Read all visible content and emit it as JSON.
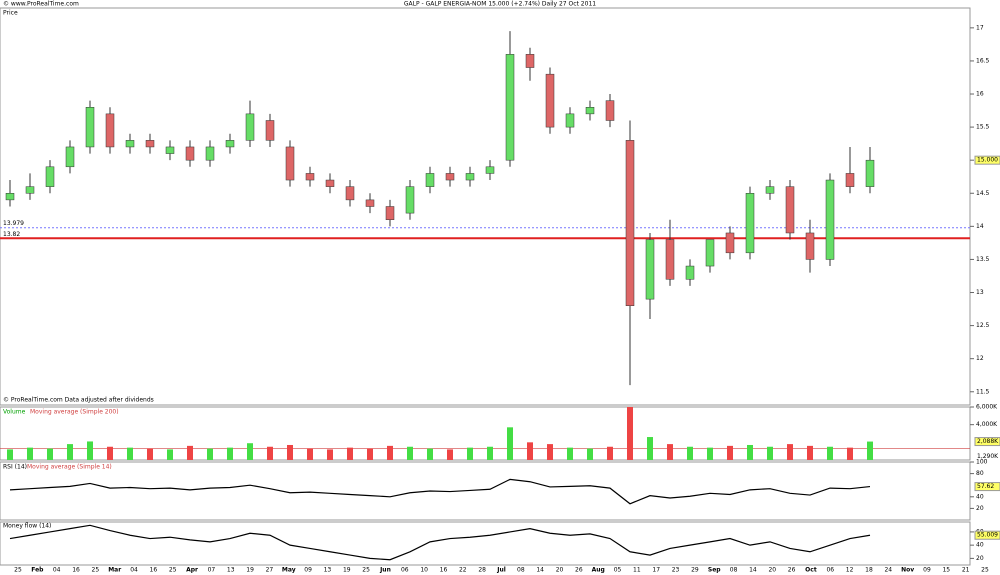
{
  "header": {
    "site": "© www.ProRealTime.com",
    "title": "GALP - GALP ENERGIA-NOM   15.000 (+2.74%)   Daily  27 Oct 2011"
  },
  "chart_data": [
    {
      "type": "candlestick",
      "title": "Price",
      "note": "© ProRealTime.com  Data adjusted after dividends",
      "ylim": [
        11.3,
        17.3
      ],
      "yticks": [
        11.5,
        12,
        12.5,
        13,
        13.5,
        14,
        14.5,
        15,
        15.5,
        16,
        16.5,
        17
      ],
      "last_label": {
        "value": 15,
        "label": "15.000"
      },
      "levels": [
        {
          "value": 13.82,
          "label": "13.82",
          "color": "#e02020"
        },
        {
          "value": 13.979,
          "label": "13.979",
          "color": "#7777ff"
        }
      ],
      "open": [
        14.4,
        14.5,
        14.6,
        14.9,
        15.2,
        15.7,
        15.2,
        15.3,
        15.1,
        15.2,
        15.0,
        15.2,
        15.3,
        15.6,
        15.2,
        14.8,
        14.7,
        14.6,
        14.4,
        14.3,
        14.2,
        14.6,
        14.8,
        14.7,
        14.8,
        15.0,
        16.6,
        16.3,
        15.5,
        15.7,
        15.9,
        15.3,
        12.9,
        13.8,
        13.2,
        13.4,
        13.9,
        13.6,
        14.5,
        14.6,
        13.9,
        13.5,
        14.8,
        14.6
      ],
      "high": [
        14.7,
        14.8,
        15.0,
        15.3,
        15.9,
        15.8,
        15.4,
        15.4,
        15.3,
        15.3,
        15.3,
        15.4,
        15.9,
        15.7,
        15.3,
        14.9,
        14.8,
        14.7,
        14.5,
        14.4,
        14.7,
        14.9,
        14.9,
        14.9,
        15.0,
        16.95,
        16.7,
        16.4,
        15.8,
        15.9,
        16.0,
        15.6,
        13.9,
        14.1,
        13.5,
        13.8,
        14.0,
        14.6,
        14.7,
        14.7,
        14.1,
        14.8,
        15.2,
        15.2
      ],
      "low": [
        14.3,
        14.4,
        14.5,
        14.8,
        15.1,
        15.1,
        15.1,
        15.1,
        15.0,
        14.9,
        14.9,
        15.1,
        15.2,
        15.2,
        14.6,
        14.6,
        14.5,
        14.3,
        14.2,
        14.0,
        14.1,
        14.5,
        14.6,
        14.6,
        14.7,
        14.9,
        16.2,
        15.4,
        15.4,
        15.6,
        15.5,
        11.6,
        12.6,
        13.1,
        13.1,
        13.3,
        13.5,
        13.5,
        14.4,
        13.8,
        13.3,
        13.4,
        14.5,
        14.5
      ],
      "close": [
        14.5,
        14.6,
        14.9,
        15.2,
        15.8,
        15.2,
        15.3,
        15.2,
        15.2,
        15.0,
        15.2,
        15.3,
        15.7,
        15.3,
        14.7,
        14.7,
        14.6,
        14.4,
        14.3,
        14.1,
        14.6,
        14.8,
        14.7,
        14.8,
        14.9,
        16.6,
        16.4,
        15.5,
        15.7,
        15.8,
        15.6,
        12.8,
        13.8,
        13.2,
        13.4,
        13.8,
        13.6,
        14.5,
        14.6,
        13.9,
        13.5,
        14.7,
        14.6,
        15.0
      ]
    },
    {
      "type": "bar",
      "title": "Volume",
      "subtitle": "Moving average (Simple 200)",
      "ylim": [
        0,
        6000
      ],
      "yticks": [
        {
          "value": 4000,
          "label": "4,000K"
        },
        {
          "value": 6000,
          "label": "6,000K"
        }
      ],
      "last_label": {
        "value": 2088,
        "label": "2,088K"
      },
      "ma_label": {
        "value": 1290,
        "label": "1,290K"
      },
      "values": [
        1200,
        1400,
        1300,
        1800,
        2100,
        1500,
        1400,
        1300,
        1200,
        1600,
        1300,
        1400,
        1900,
        1500,
        1700,
        1300,
        1200,
        1400,
        1300,
        1600,
        1500,
        1300,
        1200,
        1400,
        1500,
        3700,
        2000,
        1800,
        1400,
        1300,
        1500,
        6000,
        2600,
        1800,
        1500,
        1400,
        1600,
        1700,
        1500,
        1800,
        1600,
        1500,
        1400,
        2088
      ]
    },
    {
      "type": "line",
      "title": "RSI (14)",
      "subtitle": "Moving average (Simple 14)",
      "ylim": [
        0,
        100
      ],
      "yticks": [
        20,
        40,
        80,
        100
      ],
      "last_label": {
        "value": 57.62,
        "label": "57.62"
      },
      "values": [
        52,
        54,
        56,
        58,
        63,
        55,
        56,
        54,
        55,
        52,
        55,
        56,
        60,
        54,
        47,
        48,
        46,
        44,
        42,
        40,
        47,
        50,
        49,
        51,
        53,
        70,
        66,
        57,
        58,
        59,
        55,
        28,
        42,
        38,
        41,
        46,
        44,
        52,
        54,
        46,
        43,
        55,
        54,
        57.62
      ]
    },
    {
      "type": "line",
      "title": "Money flow (14)",
      "ylim": [
        10,
        75
      ],
      "yticks": [
        20,
        40,
        60
      ],
      "last_label": {
        "value": 55.009,
        "label": "55.009"
      },
      "values": [
        50,
        55,
        60,
        65,
        70,
        62,
        55,
        50,
        52,
        48,
        45,
        50,
        58,
        55,
        40,
        35,
        30,
        25,
        20,
        18,
        30,
        45,
        50,
        52,
        55,
        60,
        65,
        58,
        55,
        57,
        50,
        30,
        25,
        35,
        40,
        45,
        50,
        40,
        45,
        35,
        30,
        40,
        50,
        55.009
      ]
    },
    {
      "type": "axis",
      "categories": [
        "25",
        "Feb",
        "04",
        "16",
        "25",
        "Mar",
        "04",
        "16",
        "25",
        "Apr",
        "07",
        "13",
        "19",
        "27",
        "May",
        "09",
        "13",
        "19",
        "25",
        "Jun",
        "06",
        "10",
        "16",
        "22",
        "28",
        "Jul",
        "08",
        "14",
        "20",
        "26",
        "Aug",
        "05",
        "11",
        "17",
        "23",
        "29",
        "Sep",
        "08",
        "14",
        "20",
        "26",
        "Oct",
        "06",
        "12",
        "18",
        "24",
        "Nov",
        "09",
        "15",
        "21",
        "25"
      ]
    }
  ]
}
